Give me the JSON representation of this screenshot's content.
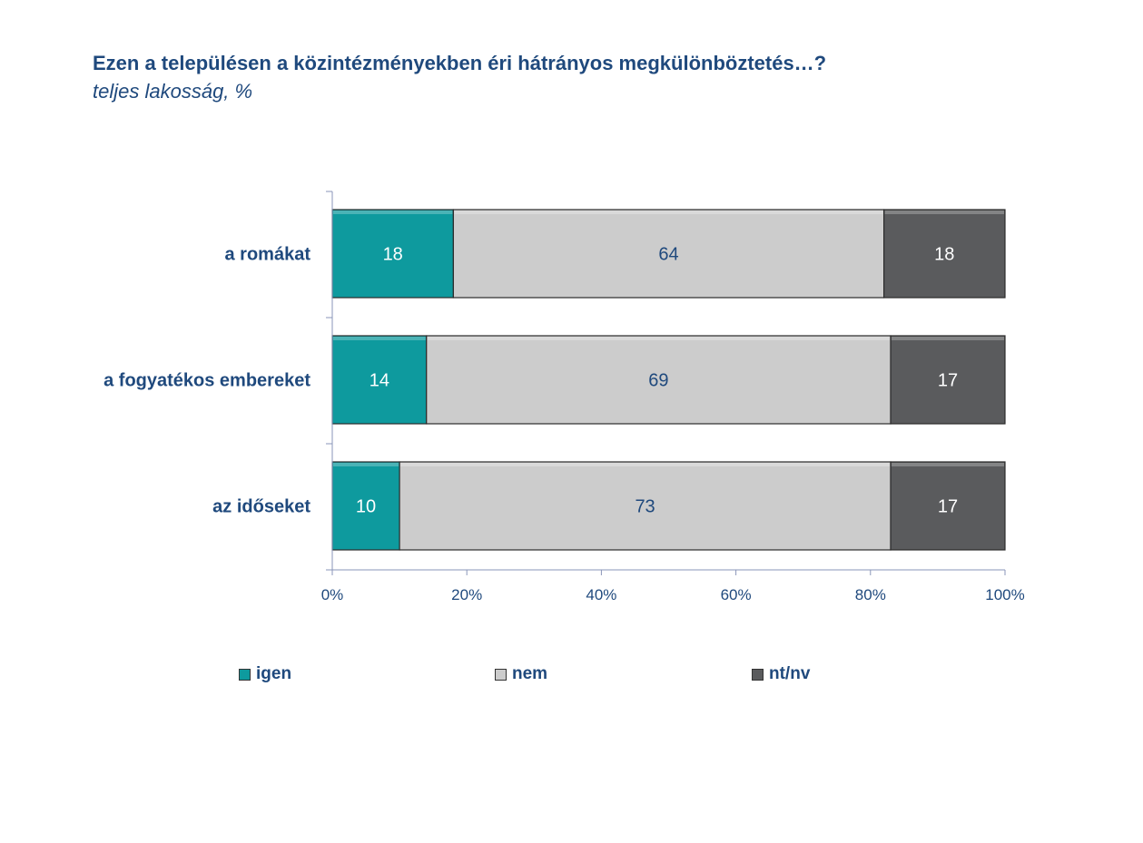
{
  "header": {
    "title": "Ezen a településen a közintézményekben éri hátrányos megkülönböztetés…?",
    "subtitle": "teljes lakosság, %"
  },
  "colors": {
    "igen": "#0e9a9e",
    "nem": "#cccccc",
    "ntnv": "#5a5b5d",
    "text": "#1f497d",
    "axis": "#8a96b8"
  },
  "chart_data": {
    "type": "bar",
    "orientation": "horizontal",
    "stacked": "percent",
    "categories": [
      "a romákat",
      "a fogyatékos embereket",
      "az időseket"
    ],
    "series": [
      {
        "name": "igen",
        "values": [
          18,
          14,
          10
        ]
      },
      {
        "name": "nem",
        "values": [
          64,
          69,
          73
        ]
      },
      {
        "name": "nt/nv",
        "values": [
          18,
          17,
          17
        ]
      }
    ],
    "xlim": [
      0,
      100
    ],
    "x_ticks": [
      "0%",
      "20%",
      "40%",
      "60%",
      "80%",
      "100%"
    ],
    "grid": false,
    "legend_position": "bottom"
  },
  "legend": [
    {
      "label": "igen"
    },
    {
      "label": "nem"
    },
    {
      "label": "nt/nv"
    }
  ]
}
